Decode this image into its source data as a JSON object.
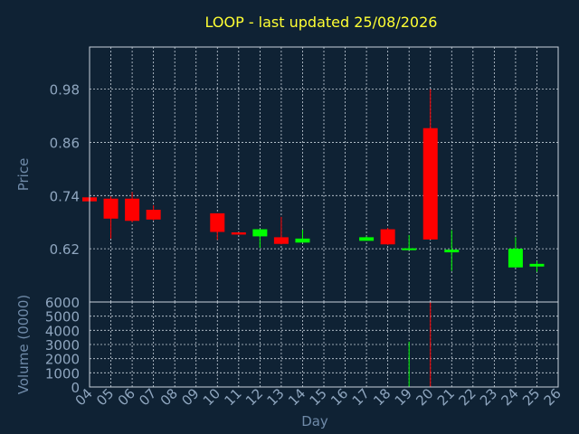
{
  "chart_data": {
    "type": "candlestick",
    "title": "LOOP - last updated 25/08/2026",
    "xlabel": "Day",
    "price_ylabel": "Price",
    "volume_ylabel": "Volume (0000)",
    "x_ticks": [
      "04",
      "05",
      "06",
      "07",
      "08",
      "09",
      "10",
      "11",
      "12",
      "13",
      "14",
      "15",
      "16",
      "17",
      "18",
      "19",
      "20",
      "21",
      "22",
      "23",
      "24",
      "25",
      "26"
    ],
    "price_ticks": [
      "0.98",
      "0.86",
      "0.74",
      "0.62"
    ],
    "price_tick_values": [
      0.98,
      0.86,
      0.74,
      0.62
    ],
    "volume_ticks": [
      "6000",
      "5000",
      "4000",
      "3000",
      "2000",
      "1000",
      "0"
    ],
    "volume_tick_values": [
      6000,
      5000,
      4000,
      3000,
      2000,
      1000,
      0
    ],
    "price_ylim": [
      0.5,
      1.075
    ],
    "volume_ylim": [
      0,
      6000
    ],
    "xlim": [
      4,
      26
    ],
    "grid": true,
    "up_color": "#00ff00",
    "down_color": "#ff0000",
    "candles": [
      {
        "day": 4,
        "open": 0.736,
        "high": 0.742,
        "low": 0.728,
        "close": 0.727,
        "volume": 0
      },
      {
        "day": 5,
        "open": 0.733,
        "high": 0.738,
        "low": 0.643,
        "close": 0.688,
        "volume": 0
      },
      {
        "day": 6,
        "open": 0.733,
        "high": 0.748,
        "low": 0.68,
        "close": 0.683,
        "volume": 0
      },
      {
        "day": 7,
        "open": 0.708,
        "high": 0.718,
        "low": 0.684,
        "close": 0.686,
        "volume": 0
      },
      {
        "day": 10,
        "open": 0.7,
        "high": 0.7,
        "low": 0.64,
        "close": 0.658,
        "volume": 0
      },
      {
        "day": 11,
        "open": 0.657,
        "high": 0.657,
        "low": 0.652,
        "close": 0.652,
        "volume": 0
      },
      {
        "day": 12,
        "open": 0.648,
        "high": 0.664,
        "low": 0.622,
        "close": 0.664,
        "volume": 0
      },
      {
        "day": 13,
        "open": 0.646,
        "high": 0.692,
        "low": 0.63,
        "close": 0.631,
        "volume": 0
      },
      {
        "day": 14,
        "open": 0.634,
        "high": 0.663,
        "low": 0.634,
        "close": 0.643,
        "volume": 0
      },
      {
        "day": 17,
        "open": 0.638,
        "high": 0.648,
        "low": 0.638,
        "close": 0.646,
        "volume": 0
      },
      {
        "day": 18,
        "open": 0.664,
        "high": 0.667,
        "low": 0.629,
        "close": 0.63,
        "volume": 0
      },
      {
        "day": 19,
        "open": 0.619,
        "high": 0.651,
        "low": 0.619,
        "close": 0.621,
        "volume": 3200
      },
      {
        "day": 20,
        "open": 0.892,
        "high": 0.98,
        "low": 0.641,
        "close": 0.641,
        "volume": 6000
      },
      {
        "day": 21,
        "open": 0.612,
        "high": 0.662,
        "low": 0.57,
        "close": 0.618,
        "volume": 0
      },
      {
        "day": 24,
        "open": 0.578,
        "high": 0.646,
        "low": 0.578,
        "close": 0.62,
        "volume": 0
      },
      {
        "day": 25,
        "open": 0.58,
        "high": 0.592,
        "low": 0.568,
        "close": 0.586,
        "volume": 0
      }
    ]
  }
}
